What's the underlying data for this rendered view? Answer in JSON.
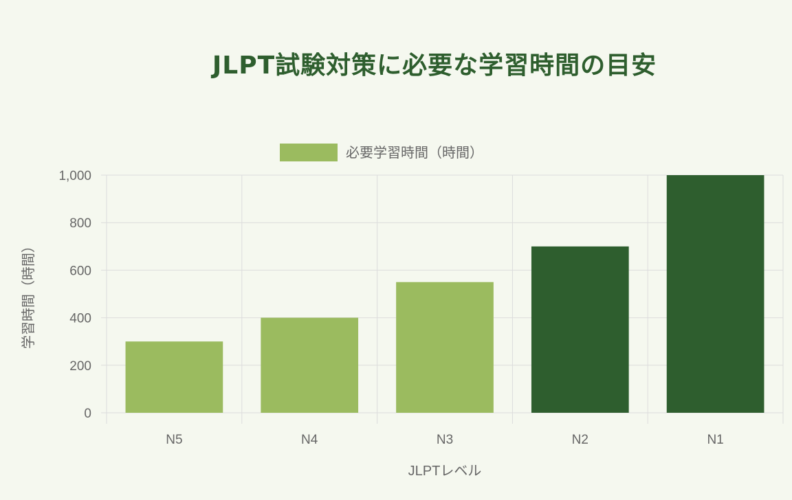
{
  "chart_data": {
    "type": "bar",
    "title": "JLPT試験対策に必要な学習時間の目安",
    "categories": [
      "N5",
      "N4",
      "N3",
      "N2",
      "N1"
    ],
    "series": [
      {
        "name": "必要学習時間（時間）",
        "values": [
          300,
          400,
          550,
          700,
          1000
        ]
      }
    ],
    "xlabel": "JLPTレベル",
    "ylabel": "学習時間（時間）",
    "ylim": [
      0,
      1000
    ],
    "yticks": [
      "0",
      "200",
      "400",
      "600",
      "800",
      "1,000"
    ],
    "grid": true,
    "legend": "top",
    "colors": {
      "light": "#9bbb5f",
      "dark": "#2e5e2e",
      "title": "#2e5e2e"
    },
    "bar_colors": [
      "#9bbb5f",
      "#9bbb5f",
      "#9bbb5f",
      "#2e5e2e",
      "#2e5e2e"
    ]
  }
}
